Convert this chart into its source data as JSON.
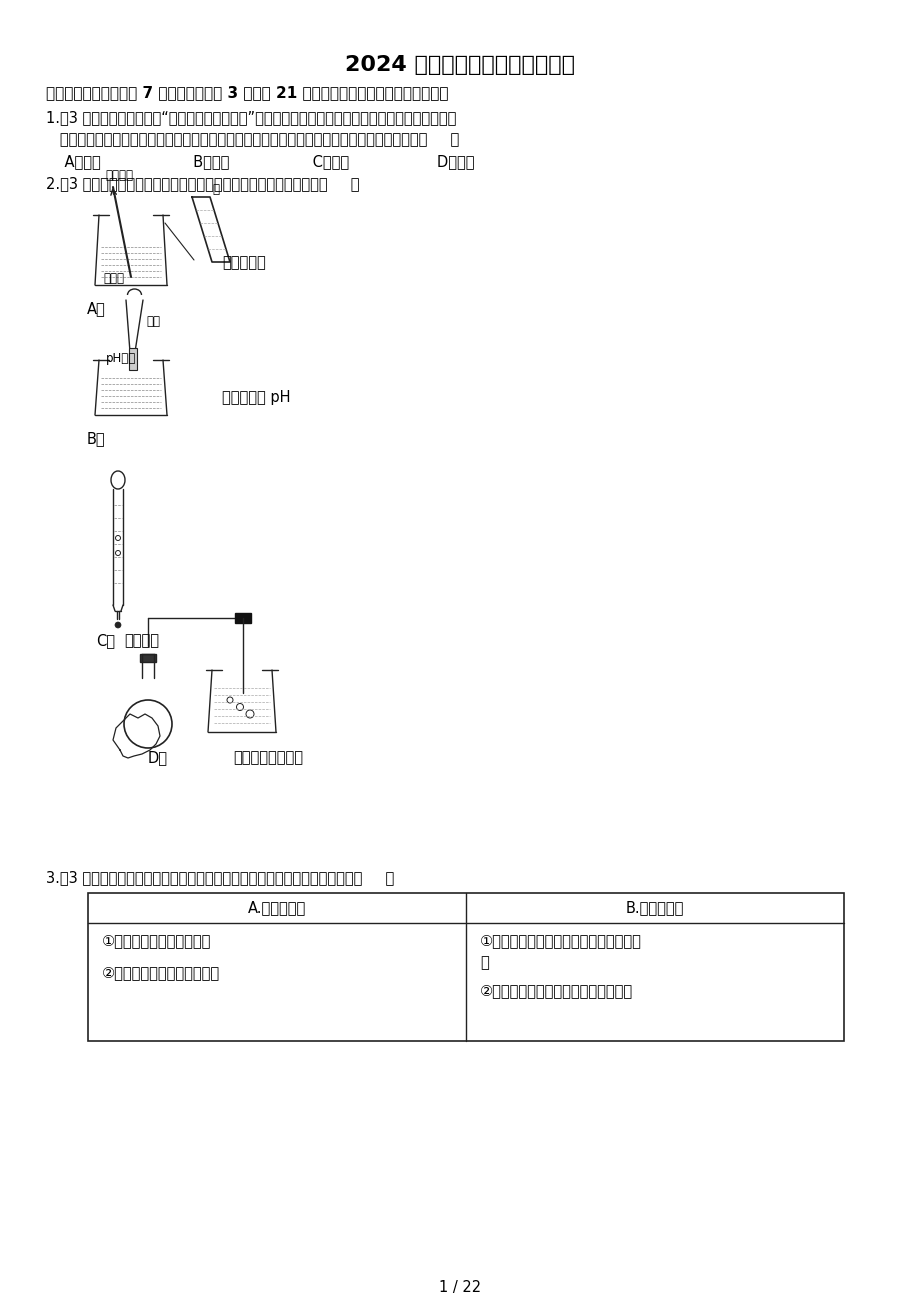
{
  "bg_color": "#ffffff",
  "title": "2024 四川省遂宁市中考化学试卷",
  "section1": "一、选择题（本题包括 7 个小题，每小题 3 分，共 21 分，每小题只有一个选项符合题意）",
  "q1_line1": "1.（3 分）遂宁射洪市享有“子昂故里、诗酒之乡”的美誉，当地的蒸馏酒传统酿造技艺是国家级非物质",
  "q1_line2": "   文化遗产之一，对于研究我国传统生物发鬵工业具有极高的价值。下列过程涉及化学变化的是（     ）",
  "q1_options": "    A．研磨                    B．发鬵                  C．蒸馏                   D．炁装",
  "q2_line1": "2.（3 分）规范操作是实验成功的保证。以下实验基本操作正确的是（     ）",
  "label_A": "A．",
  "label_A_desc": "稀释浓硫酸",
  "label_B": "B．",
  "label_B_desc": "测定溶液的 pH",
  "label_C": "C．",
  "label_C_desc": "滴加液体",
  "label_D": "D．",
  "label_D_desc": "检查装置的气密性",
  "q3_line1": "3.（3 分）归纳总结是学习化学的基本方法，下列知识点归纳有错误的一组是（     ）",
  "table_header_A": "A.化学与农业",
  "table_header_B": "B.化学与能源",
  "table_cell_A1": "①可用熟石灰改良酸性土壤",
  "table_cell_A2": "②合理使用化肥提高粮食产量",
  "table_cell_B1": "①化石燃料使用便捷，我们无需开发新能",
  "table_cell_B1b": "源",
  "table_cell_B2": "②煤、石油和天然气都属于可再生能源",
  "bujin_stirring": "不断摔拌",
  "water_label": "水",
  "conc_h2so4": "浓硫酸",
  "tweezers_label": "镇子",
  "ph_paper_label": "pH试纸",
  "page_num": "1 / 22",
  "font_size_title": 16,
  "font_size_section": 11,
  "font_size_body": 10.5,
  "font_size_small": 8.5
}
